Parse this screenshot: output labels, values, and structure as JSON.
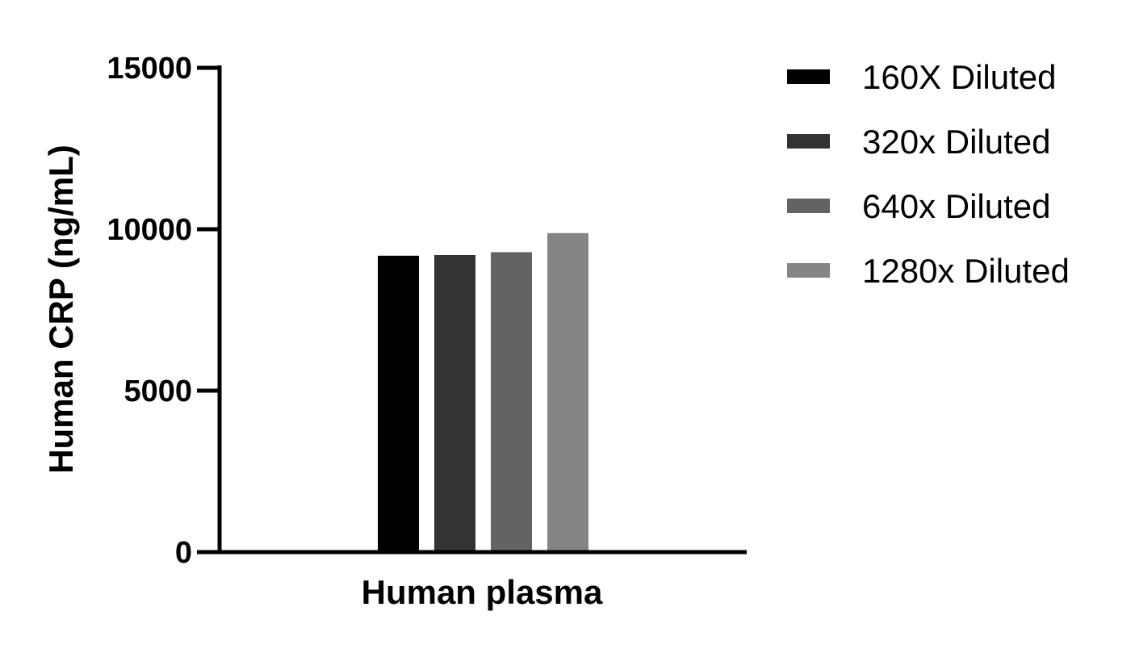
{
  "chart_data": {
    "type": "bar",
    "categories": [
      "Human plasma"
    ],
    "series": [
      {
        "name": "160X Diluted",
        "values": [
          9180
        ],
        "color": "#000000"
      },
      {
        "name": "320x Diluted",
        "values": [
          9200
        ],
        "color": "#333333"
      },
      {
        "name": "640x Diluted",
        "values": [
          9290
        ],
        "color": "#636363"
      },
      {
        "name": "1280x Diluted",
        "values": [
          9880
        ],
        "color": "#858585"
      }
    ],
    "xlabel": "Human plasma",
    "ylabel": "Human CRP (ng/mL)",
    "ylim": [
      0,
      15000
    ],
    "yticks": [
      "0",
      "5000",
      "10000",
      "15000"
    ],
    "grid": false,
    "legend_position": "right"
  }
}
